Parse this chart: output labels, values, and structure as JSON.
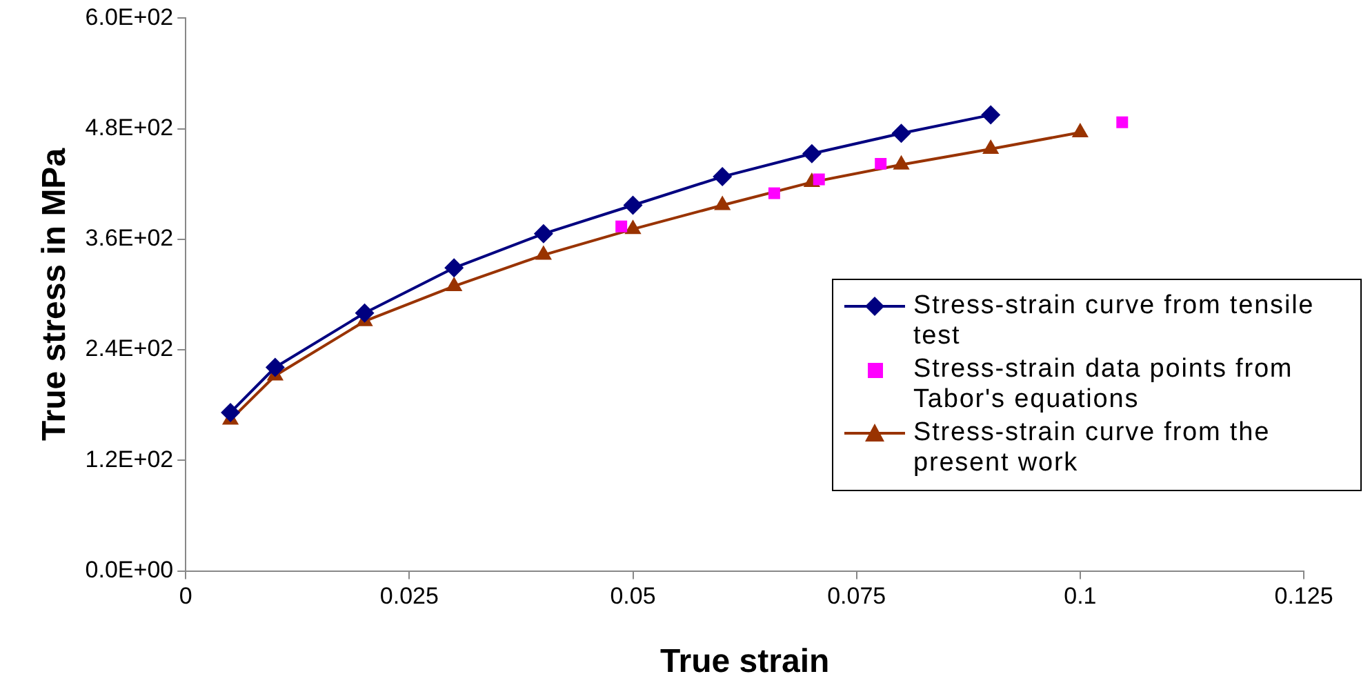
{
  "chart_data": {
    "type": "line",
    "xlabel": "True strain",
    "ylabel": "True stress in MPa",
    "xlim": [
      0,
      0.125
    ],
    "xticks": [
      0,
      0.025,
      0.05,
      0.075,
      0.1,
      0.125
    ],
    "ylim": [
      0,
      600
    ],
    "yticks": [
      {
        "value": 0,
        "label": "0.0E+00"
      },
      {
        "value": 120,
        "label": "1.2E+02"
      },
      {
        "value": 240,
        "label": "2.4E+02"
      },
      {
        "value": 360,
        "label": "3.6E+02"
      },
      {
        "value": 480,
        "label": "4.8E+02"
      },
      {
        "value": 600,
        "label": "6.0E+02"
      }
    ],
    "grid": false,
    "legend": "right",
    "series": [
      {
        "name": "Stress-strain curve from tensile test",
        "marker": "diamond",
        "color": "#000080",
        "x": [
          0.005,
          0.01,
          0.02,
          0.03,
          0.04,
          0.05,
          0.06,
          0.07,
          0.08,
          0.09
        ],
        "values": [
          172,
          221,
          280,
          329,
          366,
          397,
          428,
          453,
          475,
          495
        ]
      },
      {
        "name": "Stress-strain data points from Tabor's equations",
        "type": "scatter",
        "marker": "square",
        "color": "#ff00ff",
        "x": [
          0.0487,
          0.0658,
          0.0708,
          0.0777,
          0.1047
        ],
        "values": [
          374,
          410,
          425,
          442,
          487
        ]
      },
      {
        "name": "Stress-strain curve from the present work",
        "marker": "triangle",
        "color": "#993300",
        "x": [
          0.005,
          0.01,
          0.02,
          0.03,
          0.04,
          0.05,
          0.06,
          0.07,
          0.08,
          0.09,
          0.1
        ],
        "values": [
          164,
          212,
          271,
          309,
          343,
          371,
          397,
          422,
          441,
          458,
          476
        ]
      }
    ]
  }
}
